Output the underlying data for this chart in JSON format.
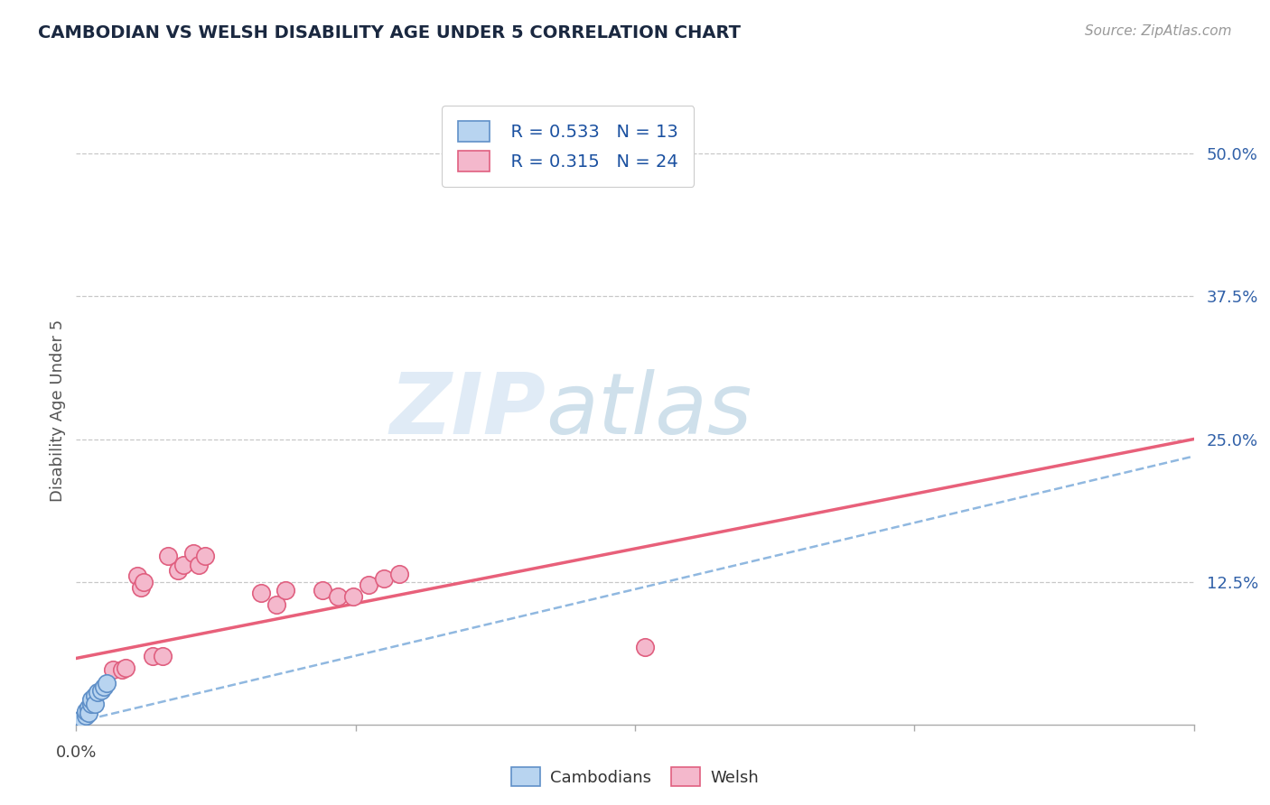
{
  "title": "CAMBODIAN VS WELSH DISABILITY AGE UNDER 5 CORRELATION CHART",
  "source": "Source: ZipAtlas.com",
  "ylabel": "Disability Age Under 5",
  "xlim": [
    0.0,
    0.2
  ],
  "ylim": [
    0.0,
    0.55
  ],
  "ytick_values": [
    0.125,
    0.25,
    0.375,
    0.5
  ],
  "ytick_labels": [
    "12.5%",
    "25.0%",
    "37.5%",
    "50.0%"
  ],
  "legend_R_cambodian": "R = 0.533",
  "legend_N_cambodian": "N = 13",
  "legend_R_welsh": "R = 0.315",
  "legend_N_welsh": "N = 24",
  "cambodian_fill": "#b8d4f0",
  "cambodian_edge": "#6090c8",
  "welsh_fill": "#f4b8cc",
  "welsh_edge": "#e06080",
  "trendline_cambodian_color": "#90b8e0",
  "trendline_welsh_color": "#e8607a",
  "background_color": "#ffffff",
  "grid_color": "#c8c8c8",
  "title_color": "#1a2840",
  "source_color": "#999999",
  "ytick_color": "#3060a8",
  "xtick_color": "#444444",
  "watermark_zip_color": "#c8dff0",
  "watermark_atlas_color": "#aaccde",
  "legend_text_color": "#1a50a0",
  "cambodian_points": [
    [
      0.002,
      0.005
    ],
    [
      0.003,
      0.008
    ],
    [
      0.003,
      0.012
    ],
    [
      0.004,
      0.015
    ],
    [
      0.004,
      0.01
    ],
    [
      0.005,
      0.018
    ],
    [
      0.005,
      0.022
    ],
    [
      0.006,
      0.025
    ],
    [
      0.006,
      0.018
    ],
    [
      0.007,
      0.028
    ],
    [
      0.008,
      0.03
    ],
    [
      0.009,
      0.033
    ],
    [
      0.01,
      0.036
    ]
  ],
  "welsh_points": [
    [
      0.012,
      0.048
    ],
    [
      0.015,
      0.048
    ],
    [
      0.016,
      0.05
    ],
    [
      0.02,
      0.13
    ],
    [
      0.021,
      0.12
    ],
    [
      0.022,
      0.125
    ],
    [
      0.025,
      0.06
    ],
    [
      0.028,
      0.06
    ],
    [
      0.03,
      0.148
    ],
    [
      0.033,
      0.135
    ],
    [
      0.035,
      0.14
    ],
    [
      0.038,
      0.15
    ],
    [
      0.04,
      0.14
    ],
    [
      0.042,
      0.148
    ],
    [
      0.06,
      0.115
    ],
    [
      0.065,
      0.105
    ],
    [
      0.068,
      0.118
    ],
    [
      0.08,
      0.118
    ],
    [
      0.085,
      0.112
    ],
    [
      0.09,
      0.112
    ],
    [
      0.095,
      0.122
    ],
    [
      0.1,
      0.128
    ],
    [
      0.105,
      0.132
    ],
    [
      0.185,
      0.068
    ]
  ],
  "welsh_trendline": [
    0.0,
    0.2,
    0.058,
    0.25
  ],
  "cambodian_trendline": [
    0.0,
    0.2,
    0.002,
    0.235
  ]
}
